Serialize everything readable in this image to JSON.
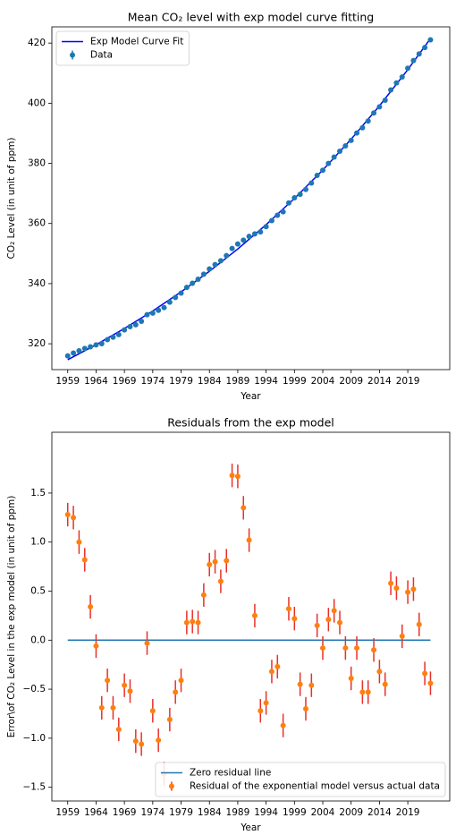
{
  "chart_data": [
    {
      "type": "errorbar",
      "title": "Mean CO₂ level with exp model curve fitting",
      "xlabel": "Year",
      "ylabel": "CO₂ Level (in unit of ppm)",
      "x": [
        1959,
        1960,
        1961,
        1962,
        1963,
        1964,
        1965,
        1966,
        1967,
        1968,
        1969,
        1970,
        1971,
        1972,
        1973,
        1974,
        1975,
        1976,
        1977,
        1978,
        1979,
        1980,
        1981,
        1982,
        1983,
        1984,
        1985,
        1986,
        1987,
        1988,
        1989,
        1990,
        1991,
        1992,
        1993,
        1994,
        1995,
        1996,
        1997,
        1998,
        1999,
        2000,
        2001,
        2002,
        2003,
        2004,
        2005,
        2006,
        2007,
        2008,
        2009,
        2010,
        2011,
        2012,
        2013,
        2014,
        2015,
        2016,
        2017,
        2018,
        2019,
        2020,
        2021,
        2022,
        2023
      ],
      "xlim": [
        1956.2,
        2026.4
      ],
      "xticks": [
        1959,
        1964,
        1969,
        1974,
        1979,
        1984,
        1989,
        1994,
        1999,
        2004,
        2009,
        2014,
        2019
      ],
      "ylim": [
        311.4,
        425.4
      ],
      "yticks": [
        320,
        340,
        360,
        380,
        400,
        420
      ],
      "legend": "upper left",
      "series": [
        {
          "name": "Exp Model Curve Fit",
          "style": "line",
          "color": "#0000ff",
          "x": [
            1959,
            1964,
            1969,
            1974,
            1979,
            1984,
            1989,
            1994,
            1999,
            2004,
            2009,
            2014,
            2019,
            2023
          ],
          "values": [
            314.7,
            319.68,
            325.08,
            330.91,
            337.25,
            344.1,
            351.53,
            359.6,
            368.32,
            377.78,
            388.03,
            399.13,
            411.16,
            421.52
          ]
        },
        {
          "name": "Data",
          "style": "errorbar",
          "color": "#1f77b4",
          "ecolor": "#1f77b4",
          "error": 0.12,
          "values": [
            315.98,
            316.91,
            317.64,
            318.45,
            318.99,
            319.62,
            320.04,
            321.37,
            322.18,
            323.05,
            324.62,
            325.68,
            326.32,
            327.46,
            329.68,
            330.19,
            331.13,
            332.03,
            333.84,
            335.41,
            336.84,
            338.76,
            340.12,
            341.48,
            343.15,
            344.87,
            346.35,
            347.61,
            349.31,
            351.69,
            353.2,
            354.45,
            355.7,
            356.54,
            357.21,
            358.96,
            360.97,
            362.74,
            363.88,
            366.84,
            368.54,
            369.71,
            371.32,
            373.45,
            375.98,
            377.7,
            379.98,
            382.09,
            384.02,
            385.83,
            387.64,
            390.1,
            391.85,
            394.06,
            396.74,
            398.81,
            401.01,
            404.41,
            406.76,
            408.72,
            411.65,
            414.21,
            416.41,
            418.53,
            421.08
          ]
        }
      ]
    },
    {
      "type": "errorbar",
      "title": "Residuals from the exp model",
      "xlabel": "Year",
      "ylabel": "Error\\of CO₂ Level in the exp model (in unit of ppm)",
      "x": [
        1959,
        1960,
        1961,
        1962,
        1963,
        1964,
        1965,
        1966,
        1967,
        1968,
        1969,
        1970,
        1971,
        1972,
        1973,
        1974,
        1975,
        1976,
        1977,
        1978,
        1979,
        1980,
        1981,
        1982,
        1983,
        1984,
        1985,
        1986,
        1987,
        1988,
        1989,
        1990,
        1991,
        1992,
        1993,
        1994,
        1995,
        1996,
        1997,
        1998,
        1999,
        2000,
        2001,
        2002,
        2003,
        2004,
        2005,
        2006,
        2007,
        2008,
        2009,
        2010,
        2011,
        2012,
        2013,
        2014,
        2015,
        2016,
        2017,
        2018,
        2019,
        2020,
        2021,
        2022,
        2023
      ],
      "xlim": [
        1956.2,
        2026.4
      ],
      "xticks": [
        1959,
        1964,
        1969,
        1974,
        1979,
        1984,
        1989,
        1994,
        1999,
        2004,
        2009,
        2014,
        2019
      ],
      "ylim": [
        -1.64,
        2.12
      ],
      "yticks": [
        {
          "value": -1.5,
          "label": "−1.5"
        },
        {
          "value": -1.0,
          "label": "−1.0"
        },
        {
          "value": -0.5,
          "label": "−0.5"
        },
        {
          "value": 0.0,
          "label": "0.0"
        },
        {
          "value": 0.5,
          "label": "0.5"
        },
        {
          "value": 1.0,
          "label": "1.0"
        },
        {
          "value": 1.5,
          "label": "1.5"
        }
      ],
      "legend": "lower right",
      "series": [
        {
          "name": "Zero residual line",
          "style": "line",
          "color": "#1f77b4",
          "x": [
            1959,
            2023
          ],
          "values": [
            0,
            0
          ]
        },
        {
          "name": "Residual of the exponential model versus actual data",
          "style": "errorbar",
          "color": "#ff7f0e",
          "ecolor": "#e8302a",
          "error": 0.12,
          "values": [
            1.28,
            1.25,
            1.0,
            0.82,
            0.34,
            -0.06,
            -0.69,
            -0.41,
            -0.69,
            -0.91,
            -0.46,
            -0.52,
            -1.03,
            -1.06,
            -0.03,
            -0.72,
            -1.02,
            -1.36,
            -0.81,
            -0.53,
            -0.41,
            0.18,
            0.19,
            0.18,
            0.46,
            0.77,
            0.8,
            0.6,
            0.81,
            1.68,
            1.67,
            1.35,
            1.02,
            0.25,
            -0.72,
            -0.64,
            -0.32,
            -0.27,
            -0.87,
            0.32,
            0.22,
            -0.45,
            -0.7,
            -0.46,
            0.15,
            -0.08,
            0.21,
            0.3,
            0.18,
            -0.08,
            -0.39,
            -0.08,
            -0.53,
            -0.53,
            -0.1,
            -0.32,
            -0.45,
            0.58,
            0.53,
            0.04,
            0.49,
            0.52,
            0.16,
            -0.34,
            -0.44
          ]
        }
      ]
    }
  ]
}
